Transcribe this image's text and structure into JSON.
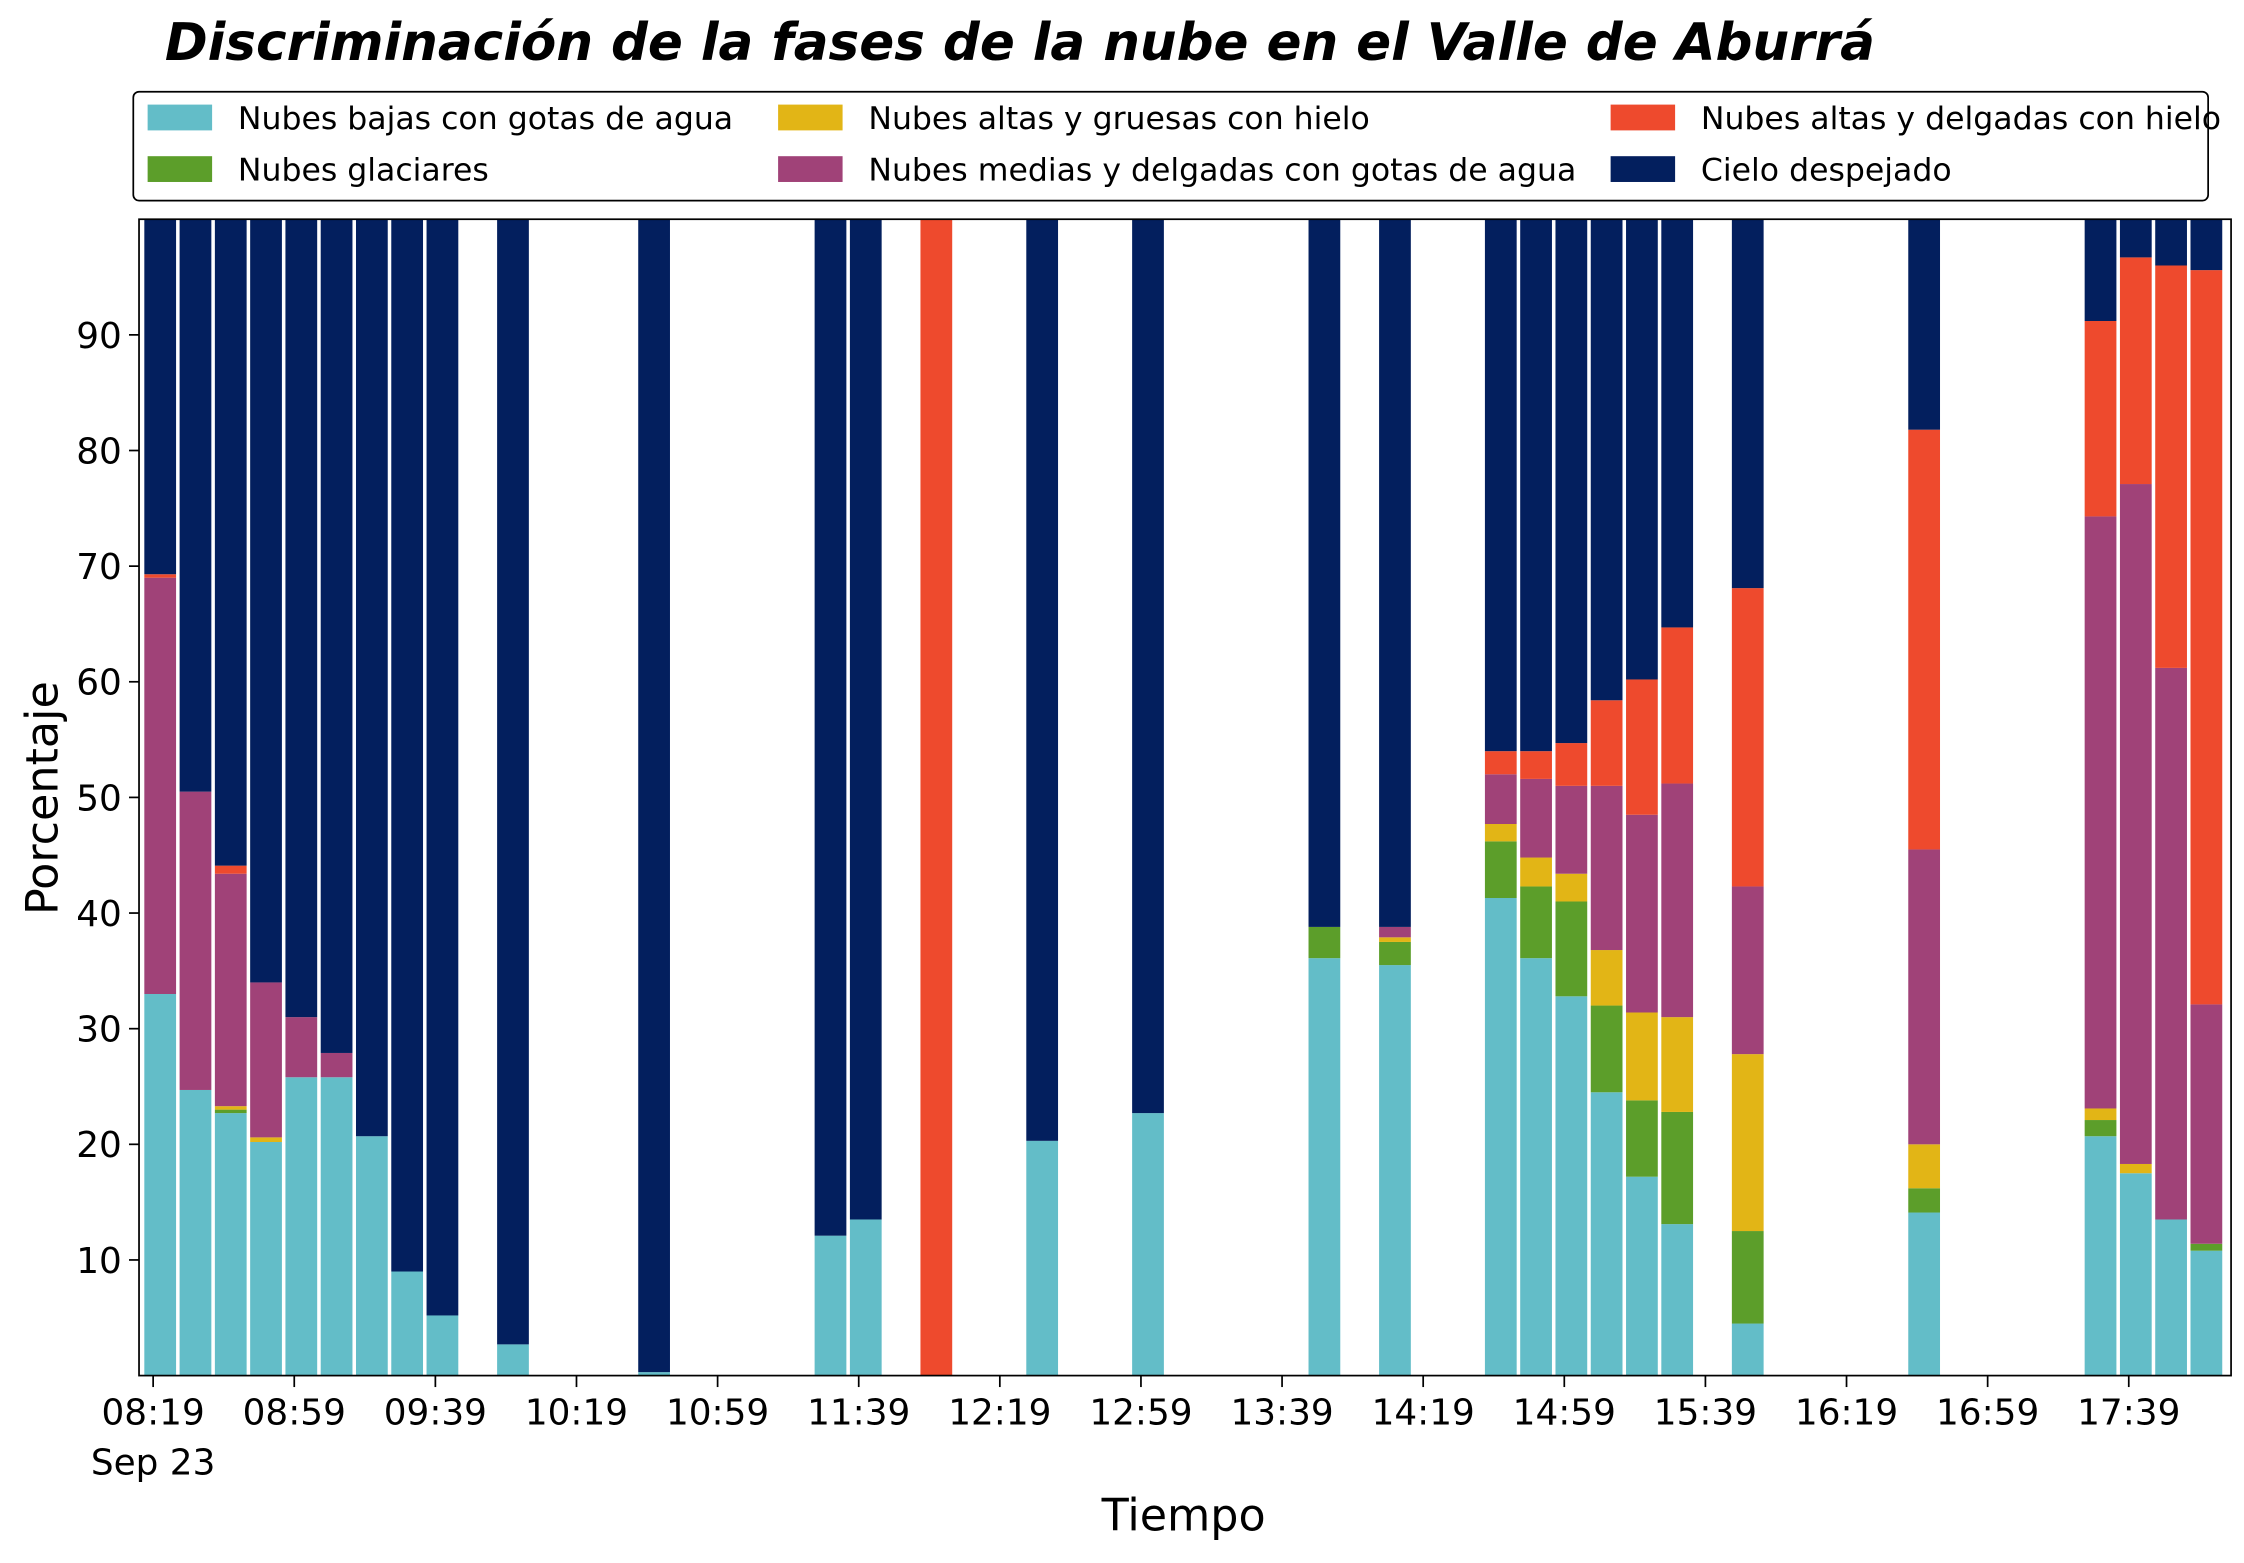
{
  "chart_data": {
    "type": "stacked_bar",
    "title": "Discriminación de la fases de la nube en el Valle de Aburrá",
    "x_label": "Tiempo",
    "y_label": "Porcentaje",
    "x_date_label": "Sep 23",
    "x": [
      "08:21",
      "08:31",
      "08:41",
      "08:51",
      "09:01",
      "09:11",
      "09:21",
      "09:31",
      "09:41",
      "10:01",
      "10:41",
      "11:31",
      "11:41",
      "12:01",
      "12:31",
      "13:01",
      "13:51",
      "14:11",
      "14:41",
      "14:51",
      "15:01",
      "15:11",
      "15:21",
      "15:31",
      "15:51",
      "16:41",
      "17:31",
      "17:41",
      "17:51",
      "18:01"
    ],
    "bar_width_minutes": 9,
    "xlim": [
      "08:15",
      "18:08"
    ],
    "xticks": [
      "08:19",
      "08:59",
      "09:39",
      "10:19",
      "10:59",
      "11:39",
      "12:19",
      "12:59",
      "13:39",
      "14:19",
      "14:59",
      "15:39",
      "16:19",
      "16:59",
      "17:39"
    ],
    "ylim": [
      0,
      100
    ],
    "yticks": [
      10,
      20,
      30,
      40,
      50,
      60,
      70,
      80,
      90
    ],
    "legend_columns": 3,
    "series": [
      {
        "name": "Nubes bajas con gotas de agua",
        "color": "#63bdc8",
        "values": [
          33,
          24.7,
          22.7,
          20.2,
          25.8,
          25.8,
          20.7,
          9,
          5.2,
          2.7,
          0.3,
          12.1,
          13.5,
          0,
          20.3,
          22.7,
          36.1,
          35.5,
          41.3,
          36.1,
          32.8,
          24.5,
          17.2,
          13.1,
          4.5,
          14.1,
          20.7,
          17.5,
          13.5,
          10.8
        ]
      },
      {
        "name": "Nubes glaciares",
        "color": "#5c9e2a",
        "values": [
          0,
          0,
          0.3,
          0,
          0,
          0,
          0,
          0,
          0,
          0,
          0,
          0,
          0,
          0,
          0,
          0,
          2.7,
          2,
          4.9,
          6.2,
          8.2,
          7.5,
          6.6,
          9.7,
          8,
          2.1,
          1.4,
          0,
          0,
          0.6
        ]
      },
      {
        "name": "Nubes altas y gruesas con hielo",
        "color": "#e2b516",
        "values": [
          0,
          0,
          0.3,
          0.4,
          0,
          0,
          0,
          0,
          0,
          0,
          0,
          0,
          0,
          0,
          0,
          0,
          0,
          0.4,
          1.5,
          2.5,
          2.4,
          4.8,
          7.6,
          8.2,
          15.3,
          3.8,
          1,
          0.8,
          0,
          0
        ]
      },
      {
        "name": "Nubes medias y delgadas con gotas de agua",
        "color": "#a04278",
        "values": [
          36,
          25.8,
          20.1,
          13.4,
          5.2,
          2.1,
          0,
          0,
          0,
          0,
          0,
          0,
          0,
          0,
          0,
          0,
          0,
          0.9,
          4.3,
          6.8,
          7.6,
          14.2,
          17.1,
          20.2,
          14.5,
          25.5,
          51.2,
          58.8,
          47.7,
          20.7
        ]
      },
      {
        "name": "Nubes altas y delgadas con hielo",
        "color": "#ee4a2d",
        "values": [
          0.3,
          0,
          0.7,
          0,
          0,
          0,
          0,
          0,
          0,
          0,
          0,
          0,
          0,
          100,
          0,
          0,
          0,
          0,
          2,
          2.4,
          3.7,
          7.4,
          11.7,
          13.5,
          25.8,
          36.3,
          16.9,
          19.6,
          34.8,
          63.5
        ]
      },
      {
        "name": "Cielo despejado",
        "color": "#031f5e",
        "values": [
          30.7,
          49.5,
          55.9,
          66,
          69,
          72.1,
          79.3,
          91,
          94.8,
          97.3,
          99.7,
          87.9,
          86.5,
          0,
          79.7,
          77.3,
          61.2,
          61.2,
          46,
          46,
          45.3,
          41.6,
          39.8,
          35.3,
          31.9,
          18.2,
          8.8,
          3.3,
          4,
          4.4
        ]
      }
    ]
  }
}
